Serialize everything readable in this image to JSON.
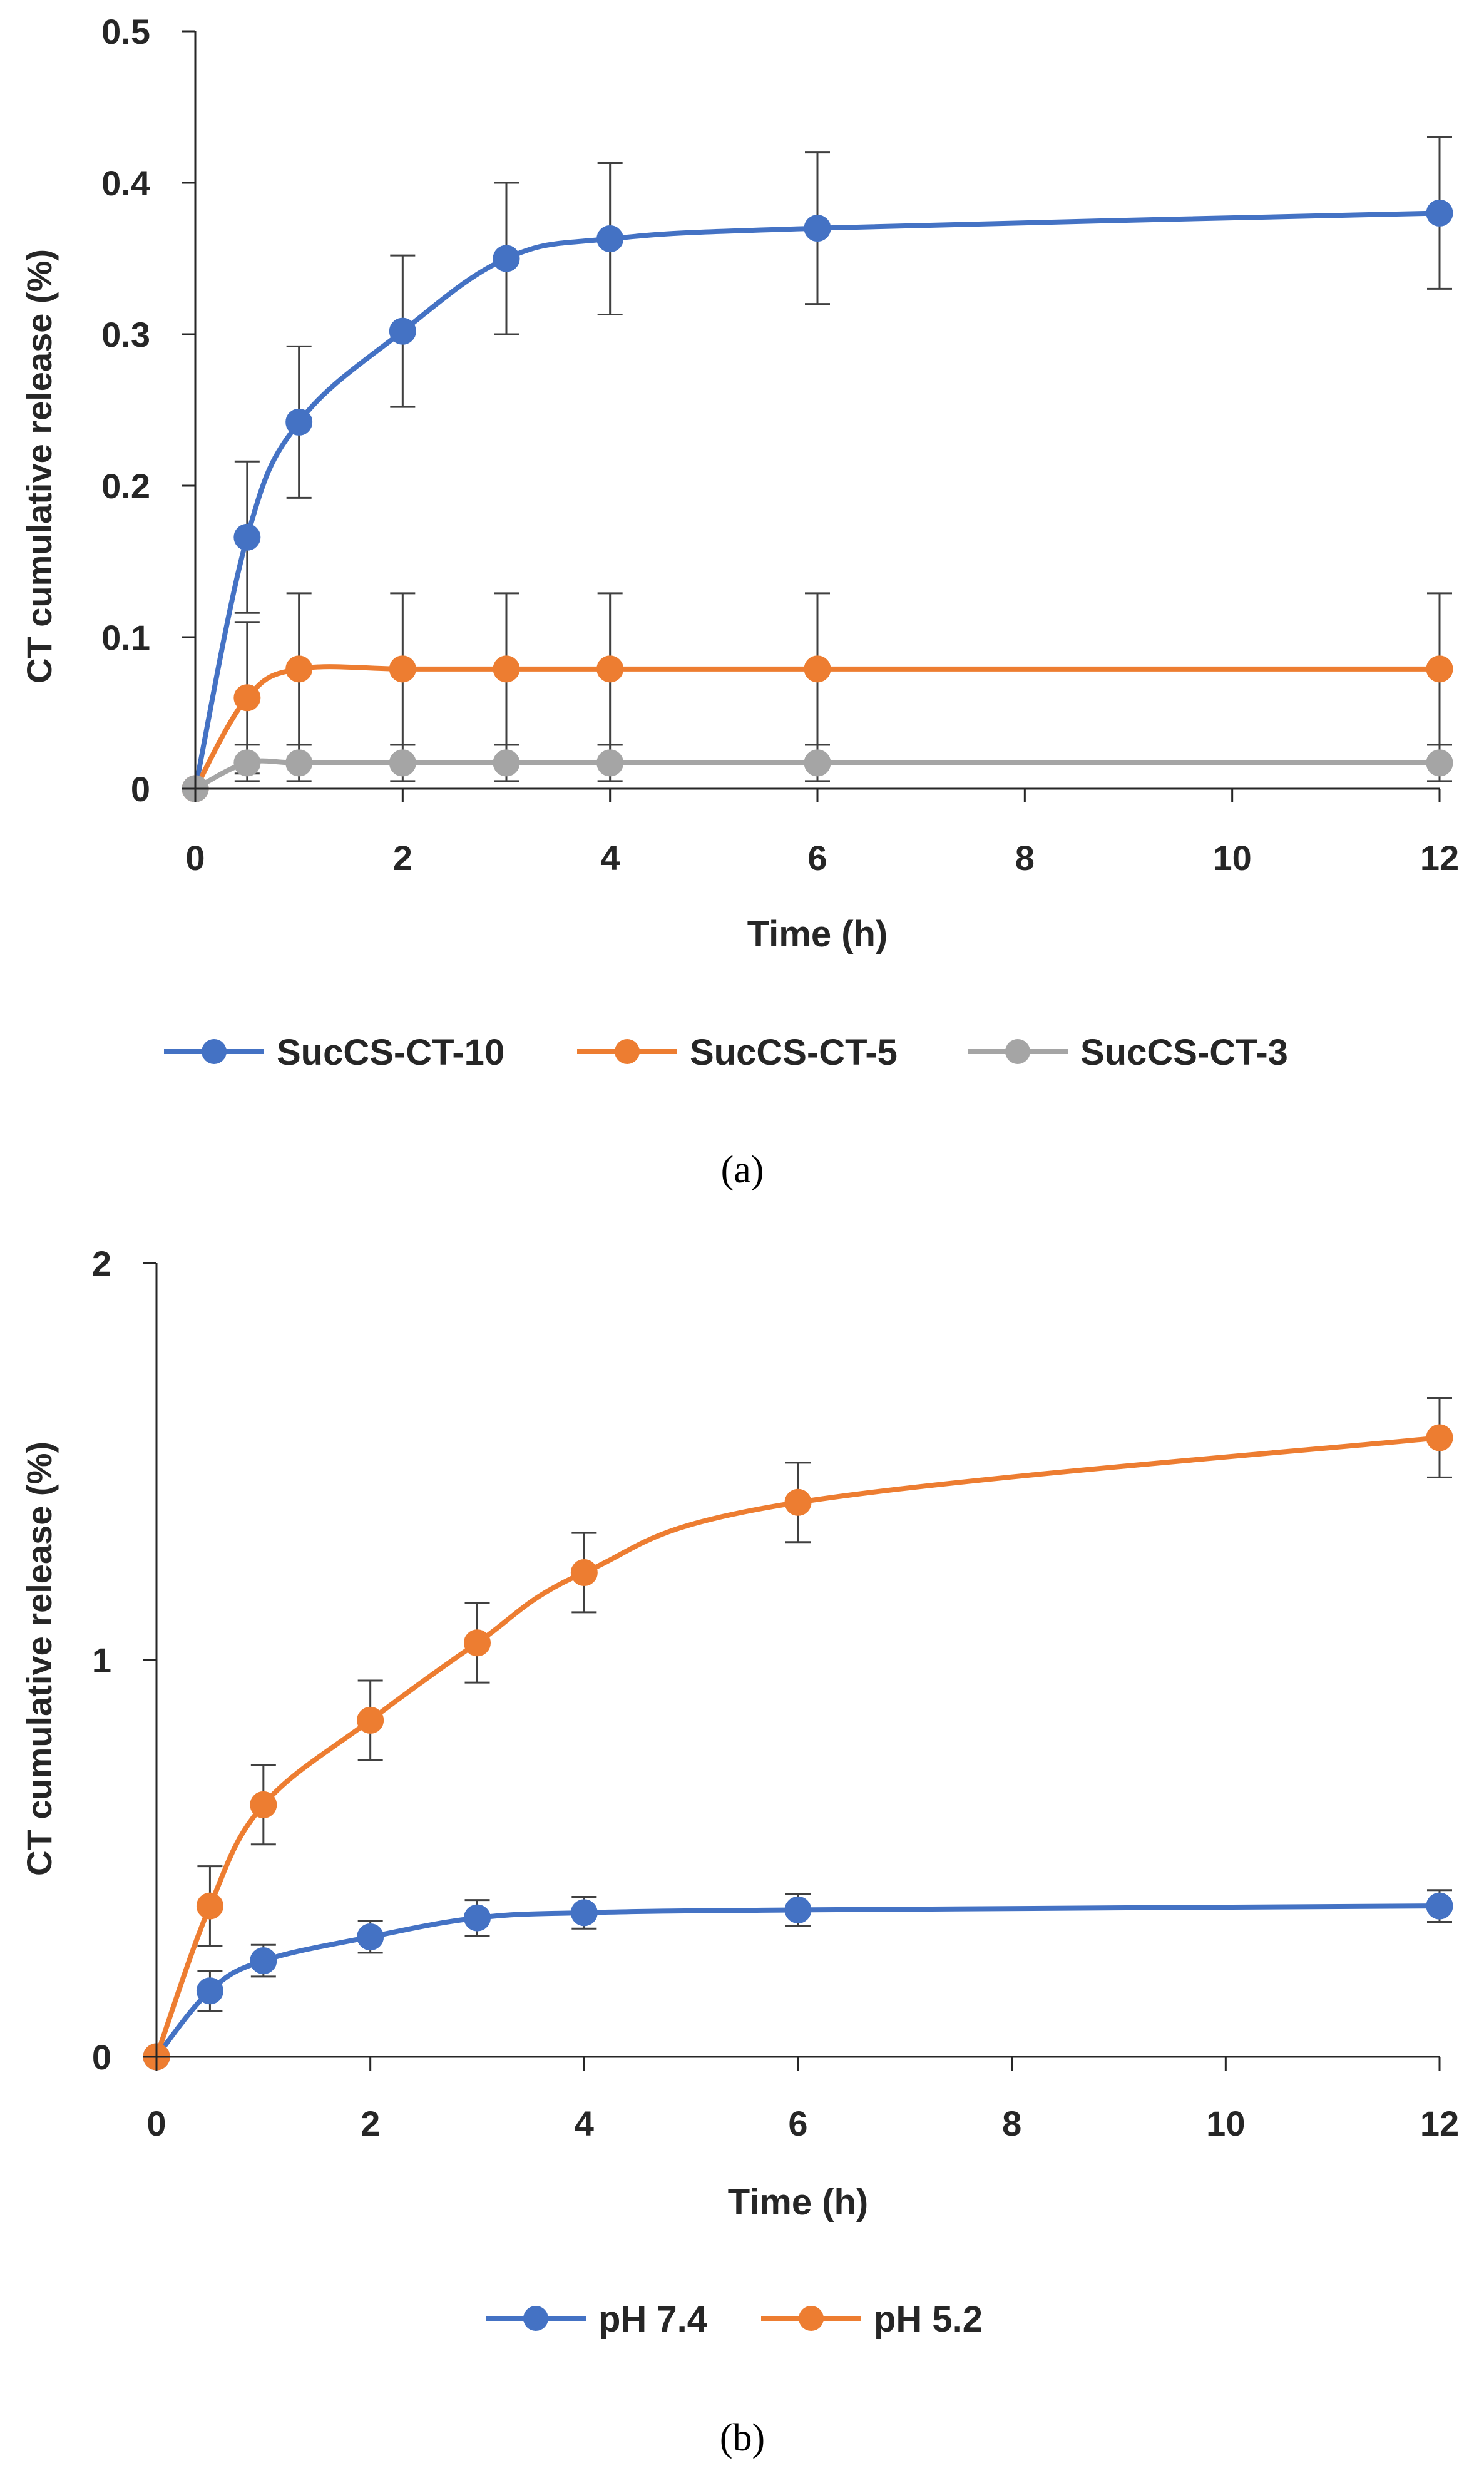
{
  "chart_data": [
    {
      "type": "line",
      "caption": "(a)",
      "xlabel": "Time (h)",
      "ylabel": "CT cumulative release (%)",
      "x": [
        0,
        0.5,
        1,
        2,
        3,
        4,
        6,
        12
      ],
      "x_tick_labels": [
        "0",
        "2",
        "4",
        "6",
        "8",
        "10",
        "12"
      ],
      "y_tick_labels": [
        "0",
        "0.1",
        "0.2",
        "0.3",
        "0.4",
        "0.5"
      ],
      "ylim": [
        0,
        0.5
      ],
      "grid": false,
      "legend_position": "bottom",
      "series": [
        {
          "name": "SucCS-CT-10",
          "color": "#4472C4",
          "values": [
            0,
            0.166,
            0.242,
            0.302,
            0.35,
            0.363,
            0.37,
            0.38
          ],
          "error": [
            0,
            0.05,
            0.05,
            0.05,
            0.05,
            0.05,
            0.05,
            0.05
          ]
        },
        {
          "name": "SucCS-CT-5",
          "color": "#ED7D31",
          "values": [
            0,
            0.06,
            0.079,
            0.079,
            0.079,
            0.079,
            0.079,
            0.079
          ],
          "error": [
            0,
            0.05,
            0.05,
            0.05,
            0.05,
            0.05,
            0.05,
            0.05
          ]
        },
        {
          "name": "SucCS-CT-3",
          "color": "#A5A5A5",
          "values": [
            0,
            0.017,
            0.017,
            0.017,
            0.017,
            0.017,
            0.017,
            0.017
          ],
          "error": [
            0,
            0.012,
            0.012,
            0.012,
            0.012,
            0.012,
            0.012,
            0.012
          ]
        }
      ]
    },
    {
      "type": "line",
      "caption": "(b)",
      "xlabel": "Time (h)",
      "ylabel": "CT cumulative  release (%)",
      "x": [
        0,
        0.5,
        1,
        2,
        3,
        4,
        6,
        12
      ],
      "x_tick_labels": [
        "0",
        "2",
        "4",
        "6",
        "8",
        "10",
        "12"
      ],
      "y_tick_labels": [
        "0",
        "1",
        "2"
      ],
      "ylim": [
        0,
        2
      ],
      "grid": false,
      "legend_position": "bottom",
      "series": [
        {
          "name": "pH 7.4",
          "color": "#4472C4",
          "values": [
            0,
            0.166,
            0.242,
            0.302,
            0.35,
            0.363,
            0.37,
            0.38
          ],
          "error": [
            0,
            0.05,
            0.04,
            0.04,
            0.045,
            0.04,
            0.04,
            0.04
          ]
        },
        {
          "name": "pH 5.2",
          "color": "#ED7D31",
          "values": [
            0,
            0.38,
            0.635,
            0.848,
            1.043,
            1.22,
            1.397,
            1.56
          ],
          "error": [
            0,
            0.1,
            0.1,
            0.1,
            0.1,
            0.1,
            0.1,
            0.1
          ]
        }
      ]
    }
  ]
}
